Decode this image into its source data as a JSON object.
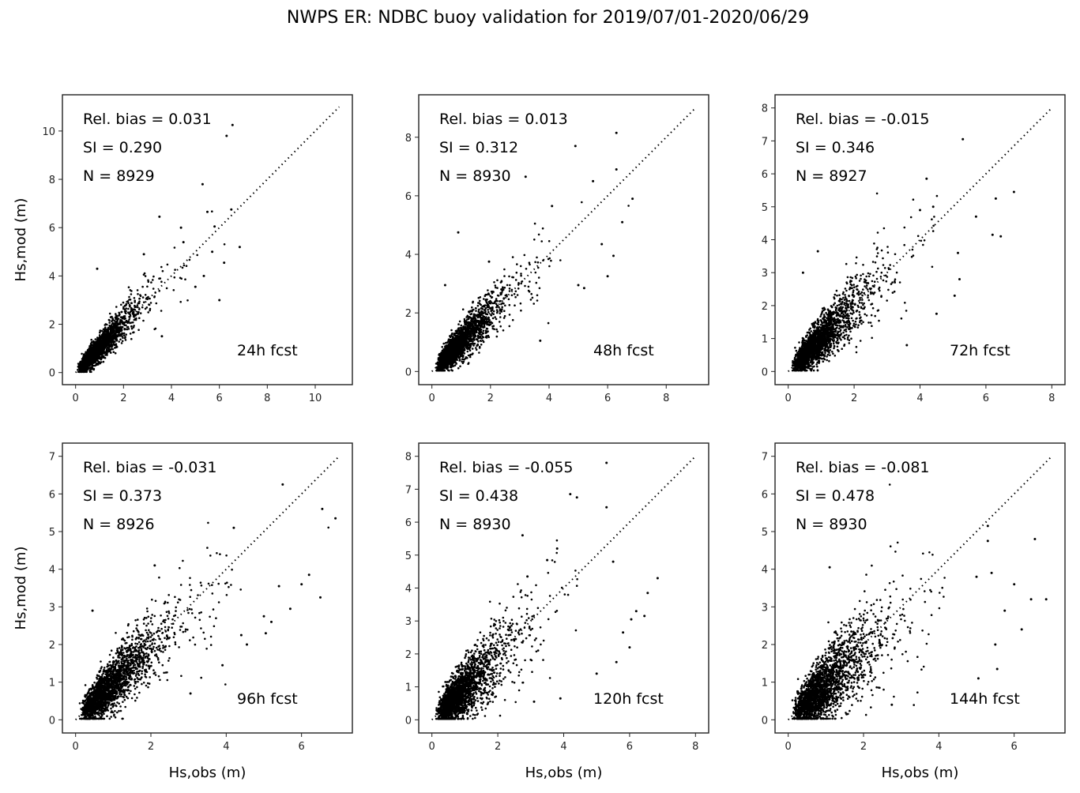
{
  "figure": {
    "title": "NWPS ER: NDBC buoy validation for 2019/07/01-2020/06/29",
    "marker_color": "#000000",
    "frame_color": "#222222"
  },
  "chart_data": [
    {
      "type": "scatter",
      "panel": "24h fcst",
      "title": "",
      "xlabel": "",
      "ylabel": "Hs,mod (m)",
      "xlim": [
        -0.55,
        11.55
      ],
      "ylim": [
        -0.5,
        11.5
      ],
      "xticks": [
        0,
        2,
        4,
        6,
        8,
        10
      ],
      "yticks": [
        0,
        2,
        4,
        6,
        8,
        10
      ],
      "one_to_one_max": 11,
      "stats": {
        "rel_bias": "Rel. bias =  0.031",
        "si": "SI =  0.290",
        "n": "N = 8929"
      },
      "label": "24h fcst",
      "spread": 0.29,
      "bias": 0.031,
      "outliers": [
        [
          6.55,
          10.25
        ],
        [
          6.3,
          9.8
        ],
        [
          5.3,
          7.8
        ],
        [
          5.5,
          6.65
        ],
        [
          3.5,
          6.45
        ],
        [
          6.5,
          6.75
        ],
        [
          5.8,
          6.05
        ],
        [
          6.85,
          5.2
        ],
        [
          4.4,
          6.0
        ],
        [
          6.2,
          4.55
        ],
        [
          6.0,
          3.0
        ],
        [
          5.0,
          3.55
        ],
        [
          0.9,
          4.3
        ],
        [
          5.35,
          4.0
        ],
        [
          2.85,
          4.9
        ],
        [
          5.7,
          5.0
        ],
        [
          4.5,
          5.4
        ],
        [
          3.6,
          1.5
        ]
      ]
    },
    {
      "type": "scatter",
      "panel": "48h fcst",
      "xlabel": "",
      "ylabel": "",
      "xlim": [
        -0.45,
        9.45
      ],
      "ylim": [
        -0.45,
        9.45
      ],
      "xticks": [
        0,
        2,
        4,
        6,
        8
      ],
      "yticks": [
        0,
        2,
        4,
        6,
        8
      ],
      "one_to_one_max": 9,
      "stats": {
        "rel_bias": "Rel. bias =  0.013",
        "si": "SI =  0.312",
        "n": "N = 8930"
      },
      "label": "48h fcst",
      "spread": 0.31,
      "bias": 0.013,
      "outliers": [
        [
          6.3,
          8.15
        ],
        [
          4.9,
          7.7
        ],
        [
          6.3,
          6.9
        ],
        [
          3.2,
          6.65
        ],
        [
          5.5,
          6.5
        ],
        [
          6.85,
          5.9
        ],
        [
          6.5,
          5.1
        ],
        [
          6.0,
          3.25
        ],
        [
          6.2,
          3.95
        ],
        [
          5.8,
          4.35
        ],
        [
          0.9,
          4.75
        ],
        [
          4.1,
          5.65
        ],
        [
          0.45,
          2.95
        ],
        [
          1.95,
          3.75
        ],
        [
          5.2,
          2.85
        ],
        [
          5.0,
          2.95
        ],
        [
          3.7,
          1.05
        ]
      ]
    },
    {
      "type": "scatter",
      "panel": "72h fcst",
      "xlabel": "",
      "ylabel": "",
      "xlim": [
        -0.4,
        8.4
      ],
      "ylim": [
        -0.4,
        8.4
      ],
      "xticks": [
        0,
        2,
        4,
        6,
        8
      ],
      "yticks": [
        0,
        1,
        2,
        3,
        4,
        5,
        6,
        7,
        8
      ],
      "one_to_one_max": 8,
      "stats": {
        "rel_bias": "Rel. bias = -0.015",
        "si": "SI =  0.346",
        "n": "N = 8927"
      },
      "label": "72h fcst",
      "spread": 0.35,
      "bias": -0.015,
      "outliers": [
        [
          5.3,
          7.05
        ],
        [
          4.2,
          5.85
        ],
        [
          6.85,
          5.45
        ],
        [
          6.3,
          5.25
        ],
        [
          5.7,
          4.7
        ],
        [
          6.2,
          4.15
        ],
        [
          6.45,
          4.1
        ],
        [
          0.9,
          3.65
        ],
        [
          0.45,
          3.0
        ],
        [
          5.2,
          2.8
        ],
        [
          5.05,
          2.3
        ],
        [
          3.6,
          0.8
        ],
        [
          4.5,
          1.75
        ],
        [
          5.15,
          3.6
        ],
        [
          4.4,
          5.0
        ],
        [
          4.0,
          4.9
        ]
      ]
    },
    {
      "type": "scatter",
      "panel": "96h fcst",
      "xlabel": "Hs,obs (m)",
      "ylabel": "Hs,mod (m)",
      "xlim": [
        -0.35,
        7.35
      ],
      "ylim": [
        -0.35,
        7.35
      ],
      "xticks": [
        0,
        2,
        4,
        6
      ],
      "yticks": [
        0,
        1,
        2,
        3,
        4,
        5,
        6,
        7
      ],
      "one_to_one_max": 7,
      "stats": {
        "rel_bias": "Rel. bias = -0.031",
        "si": "SI =  0.373",
        "n": "N = 8926"
      },
      "label": "96h fcst",
      "spread": 0.38,
      "bias": -0.031,
      "outliers": [
        [
          5.5,
          6.25
        ],
        [
          6.55,
          5.6
        ],
        [
          6.9,
          5.35
        ],
        [
          4.2,
          5.1
        ],
        [
          6.2,
          3.85
        ],
        [
          6.0,
          3.6
        ],
        [
          5.4,
          3.55
        ],
        [
          6.5,
          3.25
        ],
        [
          5.7,
          2.95
        ],
        [
          5.05,
          2.3
        ],
        [
          5.0,
          2.75
        ],
        [
          5.2,
          2.6
        ],
        [
          0.45,
          2.9
        ],
        [
          2.1,
          4.1
        ],
        [
          3.05,
          0.7
        ],
        [
          4.55,
          2.0
        ],
        [
          4.4,
          2.25
        ],
        [
          3.9,
          1.45
        ]
      ]
    },
    {
      "type": "scatter",
      "panel": "120h fcst",
      "xlabel": "Hs,obs (m)",
      "ylabel": "",
      "xlim": [
        -0.4,
        8.4
      ],
      "ylim": [
        -0.4,
        8.4
      ],
      "xticks": [
        0,
        2,
        4,
        6,
        8
      ],
      "yticks": [
        0,
        1,
        2,
        3,
        4,
        5,
        6,
        7,
        8
      ],
      "one_to_one_max": 8,
      "stats": {
        "rel_bias": "Rel. bias = -0.055",
        "si": "SI =  0.438",
        "n": "N = 8930"
      },
      "label": "120h fcst",
      "spread": 0.44,
      "bias": -0.055,
      "outliers": [
        [
          5.3,
          7.8
        ],
        [
          4.2,
          6.85
        ],
        [
          4.4,
          6.75
        ],
        [
          5.3,
          6.45
        ],
        [
          2.75,
          5.6
        ],
        [
          3.8,
          5.2
        ],
        [
          3.5,
          4.85
        ],
        [
          2.9,
          4.35
        ],
        [
          5.5,
          4.8
        ],
        [
          6.85,
          4.3
        ],
        [
          6.55,
          3.85
        ],
        [
          6.45,
          3.15
        ],
        [
          6.05,
          3.05
        ],
        [
          6.2,
          3.3
        ],
        [
          6.0,
          2.2
        ],
        [
          5.8,
          2.65
        ],
        [
          5.6,
          1.75
        ],
        [
          5.0,
          1.4
        ],
        [
          3.9,
          0.65
        ],
        [
          3.1,
          0.55
        ]
      ]
    },
    {
      "type": "scatter",
      "panel": "144h fcst",
      "xlabel": "Hs,obs (m)",
      "ylabel": "",
      "xlim": [
        -0.35,
        7.35
      ],
      "ylim": [
        -0.35,
        7.35
      ],
      "xticks": [
        0,
        2,
        4,
        6
      ],
      "yticks": [
        0,
        1,
        2,
        3,
        4,
        5,
        6,
        7
      ],
      "one_to_one_max": 7,
      "stats": {
        "rel_bias": "Rel. bias = -0.081",
        "si": "SI =  0.478",
        "n": "N = 8930"
      },
      "label": "144h fcst",
      "spread": 0.48,
      "bias": -0.081,
      "outliers": [
        [
          6.55,
          4.8
        ],
        [
          5.3,
          5.15
        ],
        [
          5.3,
          4.75
        ],
        [
          1.1,
          4.05
        ],
        [
          6.85,
          3.2
        ],
        [
          6.45,
          3.2
        ],
        [
          6.0,
          3.6
        ],
        [
          6.2,
          2.4
        ],
        [
          5.75,
          2.9
        ],
        [
          5.5,
          2.0
        ],
        [
          5.55,
          1.35
        ],
        [
          5.05,
          1.1
        ],
        [
          2.75,
          0.4
        ],
        [
          1.55,
          0.15
        ],
        [
          5.0,
          3.8
        ],
        [
          5.4,
          3.9
        ]
      ]
    }
  ]
}
